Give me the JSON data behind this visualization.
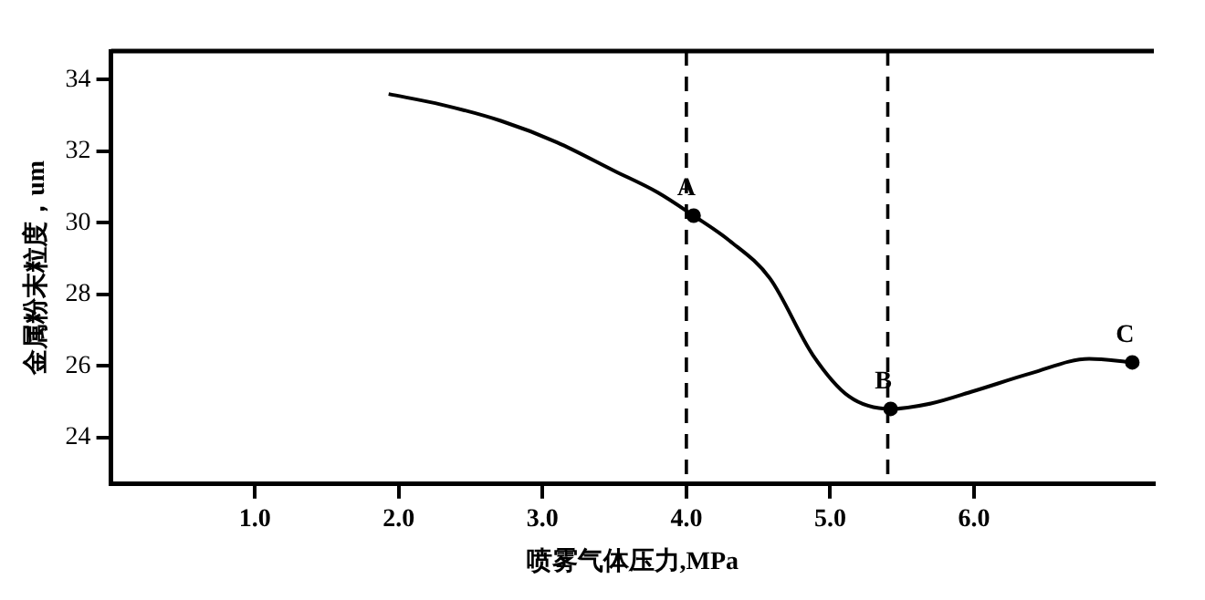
{
  "chart_data": {
    "type": "line",
    "xlabel": "喷雾气体压力,MPa",
    "ylabel": "金属粉末粒度，um",
    "xlim": [
      0,
      7.25
    ],
    "ylim": [
      22.7,
      34.8
    ],
    "xticks": [
      {
        "value": 1,
        "label": "1.0"
      },
      {
        "value": 2,
        "label": "2.0"
      },
      {
        "value": 3,
        "label": "3.0"
      },
      {
        "value": 4,
        "label": "4.0"
      },
      {
        "value": 5,
        "label": "5.0"
      },
      {
        "value": 6,
        "label": "6.0"
      }
    ],
    "yticks": [
      24,
      26,
      28,
      30,
      32,
      34
    ],
    "grid": false,
    "legend": false,
    "series": [
      {
        "color": "#000000",
        "marker": "none",
        "line_style": "solid",
        "x": [
          1.93,
          2.3,
          2.71,
          3.1,
          3.5,
          3.8,
          4.05,
          4.3,
          4.58,
          4.88,
          5.13,
          5.42,
          5.7,
          6.0,
          6.4,
          6.8,
          7.1
        ],
        "values": [
          33.6,
          33.3,
          32.85,
          32.25,
          31.45,
          30.85,
          30.2,
          29.5,
          28.45,
          26.3,
          25.15,
          24.8,
          24.95,
          25.3,
          25.8,
          26.2,
          26.1
        ]
      },
      {
        "type": "scatter",
        "color": "#000000",
        "marker": "circle",
        "x": [
          4.05,
          5.42,
          7.1
        ],
        "values": [
          30.2,
          24.8,
          26.1
        ]
      }
    ],
    "ref_lines": [
      {
        "axis": "x",
        "value": 4.0,
        "color": "#000000",
        "line_style": "dashed"
      },
      {
        "axis": "x",
        "value": 5.4,
        "color": "#000000",
        "line_style": "dashed"
      }
    ],
    "annotations": [
      {
        "text": "A",
        "x": 4.05,
        "y": 30.2
      },
      {
        "text": "B",
        "x": 5.42,
        "y": 24.8
      },
      {
        "text": "C",
        "x": 7.1,
        "y": 26.1
      }
    ]
  }
}
